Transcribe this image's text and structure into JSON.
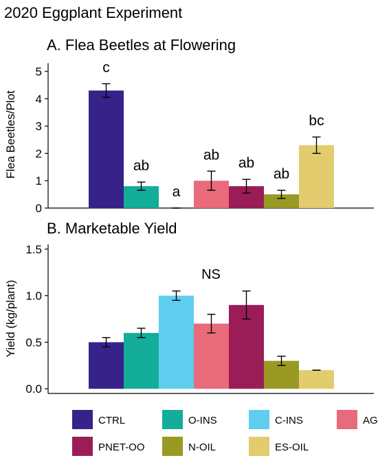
{
  "title": "2020 Eggplant Experiment",
  "legend": {
    "entries": [
      {
        "label": "CTRL",
        "color": "#37228a"
      },
      {
        "label": "O-INS",
        "color": "#13ad99"
      },
      {
        "label": "C-INS",
        "color": "#5fcdee"
      },
      {
        "label": "AGR-OO",
        "color": "#e96a7a"
      },
      {
        "label": "PNET-OO",
        "color": "#9b1d58"
      },
      {
        "label": "N-OIL",
        "color": "#999a24"
      },
      {
        "label": "ES-OIL",
        "color": "#e3cc6e"
      }
    ]
  },
  "chart_data": [
    {
      "type": "bar",
      "title": "A. Flea Beetles at Flowering",
      "ylabel": "Flea Beetles/Plot",
      "xlabel": "",
      "ylim": [
        0,
        5.3
      ],
      "yticks": [
        "0",
        "1",
        "2",
        "3",
        "4",
        "5"
      ],
      "categories": [
        "CTRL",
        "O-INS",
        "C-INS",
        "AGR-OO",
        "PNET-OO",
        "N-OIL",
        "ES-OIL"
      ],
      "values": [
        4.3,
        0.8,
        0.0,
        1.0,
        0.8,
        0.5,
        2.3
      ],
      "errors": [
        0.25,
        0.15,
        0.0,
        0.35,
        0.25,
        0.15,
        0.3
      ],
      "labels": [
        "c",
        "ab",
        "a",
        "ab",
        "ab",
        "ab",
        "bc"
      ],
      "grid": false
    },
    {
      "type": "bar",
      "title": "B. Marketable Yield",
      "ylabel": "Yield (kg/plant)",
      "xlabel": "",
      "ylim": [
        -0.05,
        1.55
      ],
      "yticks": [
        "0.0",
        "0.5",
        "1.0",
        "1.5"
      ],
      "categories": [
        "CTRL",
        "O-INS",
        "C-INS",
        "AGR-OO",
        "PNET-OO",
        "N-OIL",
        "ES-OIL"
      ],
      "values": [
        0.5,
        0.6,
        1.0,
        0.7,
        0.9,
        0.3,
        0.2
      ],
      "errors": [
        0.05,
        0.05,
        0.05,
        0.1,
        0.15,
        0.05,
        0.0
      ],
      "annotation": "NS",
      "grid": false
    }
  ]
}
